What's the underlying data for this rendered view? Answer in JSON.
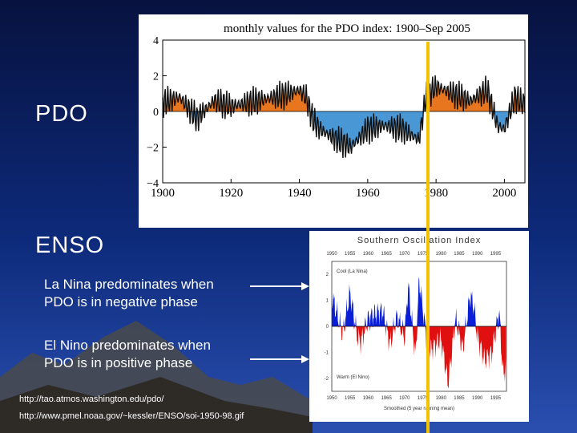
{
  "slide": {
    "pdo_label": "PDO",
    "enso_label": "ENSO",
    "la_nina_line1": "La Nina predominates when",
    "la_nina_line2": "PDO is in negative phase",
    "el_nino_line1": "El Nino predominates when",
    "el_nino_line2": "PDO is in positive phase",
    "url1": "http://tao.atmos.washington.edu/pdo/",
    "url2": "http://www.pmel.noaa.gov/~kessler/ENSO/soi-1950-98.gif",
    "marker_color": "#f2c200",
    "background_color": "#0d2a7a"
  },
  "chart_data": [
    {
      "type": "area",
      "title": "monthly values for the PDO index: 1900–Sep 2005",
      "xlabel": "",
      "ylabel": "",
      "xlim": [
        1900,
        2006
      ],
      "ylim": [
        -4,
        4
      ],
      "x_ticks": [
        "1900",
        "1920",
        "1940",
        "1960",
        "1980",
        "2000"
      ],
      "y_ticks": [
        "4",
        "2",
        "0",
        "−2",
        "−4"
      ],
      "positive_color": "#e8761e",
      "negative_color": "#4a97d6",
      "smoothed_color": "#000000",
      "series": [
        {
          "name": "PDO index",
          "x": [
            1900,
            1905,
            1910,
            1915,
            1920,
            1925,
            1930,
            1935,
            1940,
            1942,
            1944,
            1946,
            1950,
            1955,
            1960,
            1965,
            1970,
            1975,
            1977,
            1980,
            1985,
            1990,
            1995,
            1998,
            2000,
            2003,
            2005
          ],
          "y": [
            0.5,
            0.8,
            -0.4,
            0.6,
            0.3,
            0.5,
            0.7,
            0.9,
            1.2,
            0.8,
            -0.5,
            -1.0,
            -1.5,
            -2.0,
            -1.0,
            -0.8,
            -1.0,
            -1.6,
            0.8,
            1.4,
            1.0,
            0.6,
            1.2,
            -0.8,
            -1.0,
            0.8,
            0.5
          ]
        }
      ]
    },
    {
      "type": "area",
      "title": "Southern Oscillation Index",
      "xlim": [
        1950,
        1998
      ],
      "ylim": [
        -2.5,
        2.5
      ],
      "x_ticks": [
        "1950",
        "1955",
        "1960",
        "1965",
        "1970",
        "1975",
        "1980",
        "1985",
        "1990",
        "1995"
      ],
      "y_ticks": [
        "2",
        "1",
        "0",
        "-1",
        "-2"
      ],
      "annotations": [
        "Cool (La Nina)",
        "Warm (El Nino)",
        "Smoothed (5 year running mean)"
      ],
      "positive_color": "#0a1fd6",
      "negative_color": "#e01010",
      "series": [
        {
          "name": "SOI",
          "x": [
            1950,
            1953,
            1955,
            1957,
            1958,
            1960,
            1962,
            1964,
            1966,
            1968,
            1970,
            1971,
            1973,
            1974,
            1976,
            1977,
            1980,
            1982,
            1984,
            1986,
            1988,
            1989,
            1990,
            1992,
            1994,
            1996,
            1997,
            1998
          ],
          "y": [
            1.2,
            -0.3,
            1.3,
            -0.4,
            -0.6,
            0.3,
            0.5,
            0.6,
            -0.7,
            0.4,
            -0.5,
            1.6,
            -1.2,
            1.8,
            -0.4,
            -0.9,
            -0.5,
            -2.2,
            0.3,
            -0.9,
            1.2,
            0.8,
            -0.4,
            -1.3,
            -1.0,
            0.6,
            -1.8,
            -1.6
          ]
        }
      ]
    }
  ]
}
